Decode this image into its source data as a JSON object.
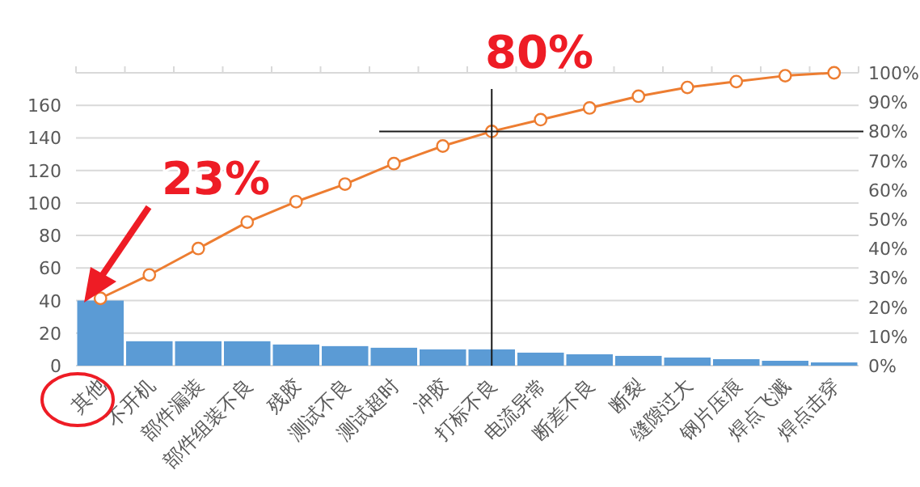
{
  "chart_data": {
    "type": "bar",
    "categories": [
      "其他",
      "不开机",
      "部件漏装",
      "部件组装不良",
      "残胶",
      "测试不良",
      "测试超时",
      "冲胶",
      "打标不良",
      "电流异常",
      "断差不良",
      "断裂",
      "缝隙过大",
      "钢片压痕",
      "焊点飞溅",
      "焊点击穿"
    ],
    "series": [
      {
        "color": "#5b9bd5",
        "values": [
          40,
          15,
          15,
          15,
          13,
          12,
          11,
          10,
          10,
          8,
          7,
          6,
          5,
          4,
          3,
          2
        ]
      },
      {
        "type": "line",
        "axis": "y2",
        "color": "#ed7d31",
        "marker": "circle",
        "values": [
          23,
          31,
          40,
          49,
          56,
          62,
          69,
          75,
          80,
          84,
          88,
          92,
          95,
          97,
          99,
          100
        ]
      }
    ],
    "ylim": [
      0,
      180
    ],
    "yticks": [
      0,
      20,
      40,
      60,
      80,
      100,
      120,
      140,
      160,
      {
        "value": 180,
        "label": null
      }
    ],
    "y2lim": [
      0,
      100
    ],
    "y2ticks": [
      {
        "value": 0,
        "label": "0%"
      },
      {
        "value": 10,
        "label": "10%"
      },
      {
        "value": 20,
        "label": "20%"
      },
      {
        "value": 30,
        "label": "30%"
      },
      {
        "value": 40,
        "label": "40%"
      },
      {
        "value": 50,
        "label": "50%"
      },
      {
        "value": 60,
        "label": "60%"
      },
      {
        "value": 70,
        "label": "70%"
      },
      {
        "value": 80,
        "label": "80%"
      },
      {
        "value": 90,
        "label": "90%"
      },
      {
        "value": 100,
        "label": "100%"
      }
    ],
    "grid": "y",
    "ref_lines": [
      {
        "axis": "y2",
        "value": 80,
        "color": "#1a1a1a"
      },
      {
        "axis": "x",
        "value": "打标不良",
        "color": "#1a1a1a"
      }
    ],
    "annotations": [
      "23%",
      "80%"
    ]
  }
}
